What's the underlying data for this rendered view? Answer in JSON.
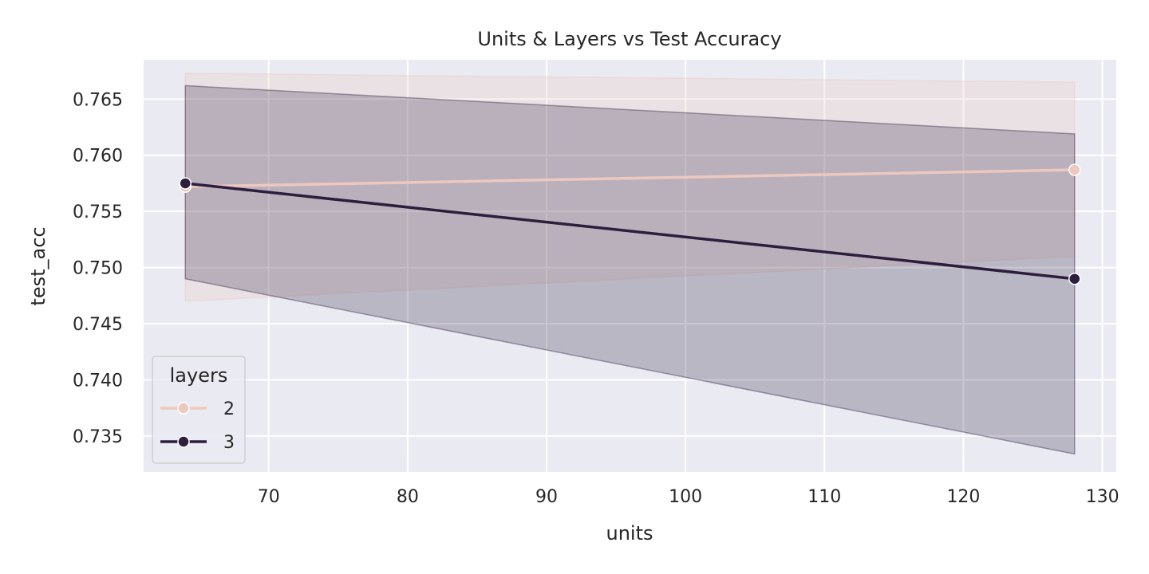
{
  "chart_data": {
    "type": "line",
    "title": "Units & Layers vs Test Accuracy",
    "xlabel": "units",
    "ylabel": "test_acc",
    "xlim": [
      61,
      131
    ],
    "ylim": [
      0.7318,
      0.7685
    ],
    "xticks": [
      70,
      80,
      90,
      100,
      110,
      120,
      130
    ],
    "yticks": [
      0.735,
      0.74,
      0.745,
      0.75,
      0.755,
      0.76,
      0.765
    ],
    "grid": true,
    "background": "#eaeaf2",
    "legend": {
      "title": "layers",
      "placement": "lower-left"
    },
    "series": [
      {
        "name": "2",
        "color": "#ecc8bf",
        "x": [
          64,
          128
        ],
        "y": [
          0.7572,
          0.7587
        ],
        "ci_lower": [
          0.747,
          0.751
        ],
        "ci_upper": [
          0.7673,
          0.7665
        ]
      },
      {
        "name": "3",
        "color": "#2d1e3e",
        "x": [
          64,
          128
        ],
        "y": [
          0.7575,
          0.749
        ],
        "ci_lower": [
          0.749,
          0.7334
        ],
        "ci_upper": [
          0.7662,
          0.7619
        ]
      }
    ]
  }
}
